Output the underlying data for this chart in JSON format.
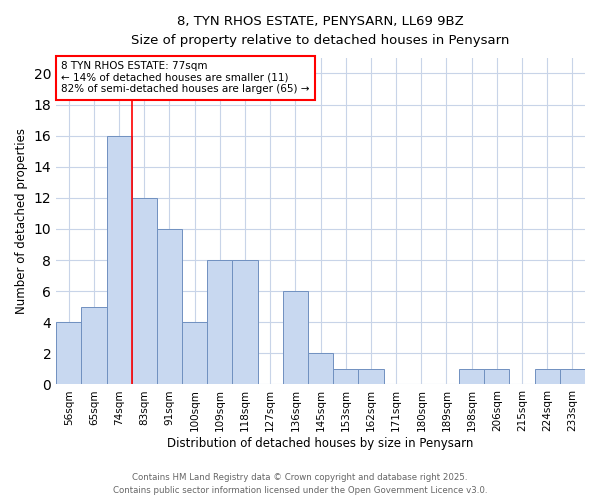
{
  "title1": "8, TYN RHOS ESTATE, PENYSARN, LL69 9BZ",
  "title2": "Size of property relative to detached houses in Penysarn",
  "xlabel": "Distribution of detached houses by size in Penysarn",
  "ylabel": "Number of detached properties",
  "categories": [
    "56sqm",
    "65sqm",
    "74sqm",
    "83sqm",
    "91sqm",
    "100sqm",
    "109sqm",
    "118sqm",
    "127sqm",
    "136sqm",
    "145sqm",
    "153sqm",
    "162sqm",
    "171sqm",
    "180sqm",
    "189sqm",
    "198sqm",
    "206sqm",
    "215sqm",
    "224sqm",
    "233sqm"
  ],
  "values": [
    4,
    5,
    16,
    12,
    10,
    4,
    8,
    8,
    0,
    6,
    2,
    1,
    1,
    0,
    0,
    0,
    1,
    1,
    0,
    1,
    1
  ],
  "bar_color": "#c8d8f0",
  "bar_edge_color": "#7090c0",
  "vline_x_index": 2.5,
  "vline_color": "red",
  "ylim": [
    0,
    21
  ],
  "yticks": [
    0,
    2,
    4,
    6,
    8,
    10,
    12,
    14,
    16,
    18,
    20
  ],
  "annotation_text": "8 TYN RHOS ESTATE: 77sqm\n← 14% of detached houses are smaller (11)\n82% of semi-detached houses are larger (65) →",
  "annotation_box_color": "white",
  "annotation_box_edge": "red",
  "footer1": "Contains HM Land Registry data © Crown copyright and database right 2025.",
  "footer2": "Contains public sector information licensed under the Open Government Licence v3.0.",
  "bg_color": "#ffffff",
  "plot_bg_color": "#ffffff",
  "grid_color": "#c8d4e8"
}
